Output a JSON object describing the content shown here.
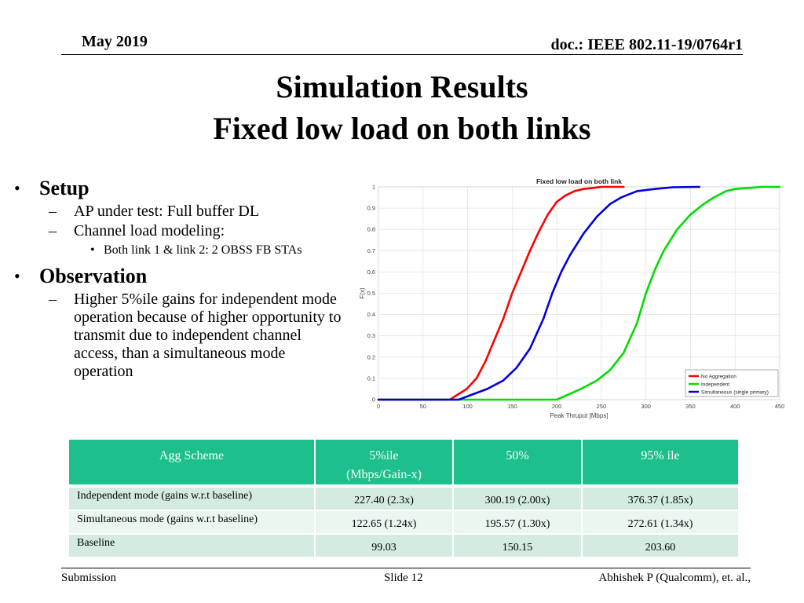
{
  "header": {
    "date": "May 2019",
    "doc_id": "doc.: IEEE 802.11-19/0764r1"
  },
  "title": {
    "line1": "Simulation Results",
    "line2": "Fixed low load on both links"
  },
  "bullets": {
    "setup": {
      "heading": "Setup",
      "items": [
        "AP under test: Full buffer DL",
        "Channel load modeling:"
      ],
      "subitems": [
        "Both link 1 & link 2: 2 OBSS FB STAs"
      ]
    },
    "observation": {
      "heading": "Observation",
      "items": [
        "Higher 5%ile gains for independent mode operation because of higher opportunity to transmit due to independent channel access, than a simultaneous mode operation"
      ]
    }
  },
  "chart_data": {
    "type": "line",
    "title": "Fixed low load on both link",
    "xlabel": "Peak Thruput [Mbps]",
    "ylabel": "F(x)",
    "xlim": [
      0,
      450
    ],
    "ylim": [
      0,
      1
    ],
    "xticks": [
      "0",
      "50",
      "100",
      "150",
      "200",
      "250",
      "300",
      "350",
      "400",
      "450"
    ],
    "yticks": [
      "0",
      "0.1",
      "0.2",
      "0.3",
      "0.4",
      "0.5",
      "0.6",
      "0.7",
      "0.8",
      "0.9",
      "1"
    ],
    "grid": true,
    "legend_position": "bottom-right",
    "series": [
      {
        "name": "No Aggregation",
        "color": "#ff0000",
        "x": [
          0,
          80,
          99,
          110,
          120,
          130,
          140,
          150,
          160,
          170,
          180,
          190,
          200,
          210,
          220,
          230,
          240,
          250,
          260,
          275
        ],
        "y": [
          0,
          0,
          0.05,
          0.1,
          0.18,
          0.28,
          0.38,
          0.5,
          0.6,
          0.7,
          0.79,
          0.87,
          0.93,
          0.96,
          0.98,
          0.99,
          0.995,
          1,
          1,
          1
        ]
      },
      {
        "name": "Independent",
        "color": "#00dd00",
        "x": [
          0,
          200,
          227,
          245,
          260,
          275,
          290,
          300,
          310,
          320,
          335,
          350,
          365,
          376,
          390,
          400,
          415,
          430,
          450
        ],
        "y": [
          0,
          0,
          0.05,
          0.09,
          0.14,
          0.22,
          0.36,
          0.5,
          0.61,
          0.7,
          0.8,
          0.87,
          0.92,
          0.95,
          0.98,
          0.99,
          0.995,
          1,
          1
        ]
      },
      {
        "name": "Simultaneous (single primary)",
        "color": "#0000dd",
        "x": [
          0,
          90,
          122,
          140,
          155,
          170,
          185,
          195,
          205,
          215,
          230,
          245,
          260,
          272,
          290,
          310,
          330,
          360
        ],
        "y": [
          0,
          0,
          0.05,
          0.09,
          0.15,
          0.24,
          0.38,
          0.5,
          0.6,
          0.68,
          0.78,
          0.86,
          0.92,
          0.95,
          0.98,
          0.99,
          0.998,
          1
        ]
      }
    ]
  },
  "table": {
    "headers": [
      "Agg Scheme",
      "5%ile (Mbps/Gain-x)",
      "50%",
      "95% ile"
    ],
    "header_line2": "(Mbps/Gain-x)",
    "header_5ile_line1": "5%ile",
    "rows": [
      [
        "Independent mode (gains w.r.t baseline)",
        "227.40 (2.3x)",
        "300.19 (2.00x)",
        "376.37 (1.85x)"
      ],
      [
        "Simultaneous mode (gains w.r.t baseline)",
        "122.65 (1.24x)",
        "195.57 (1.30x)",
        "272.61 (1.34x)"
      ],
      [
        "Baseline",
        "99.03",
        "150.15",
        "203.60"
      ]
    ]
  },
  "footer": {
    "left": "Submission",
    "center": "Slide 12",
    "right": "Abhishek P (Qualcomm), et. al.,"
  }
}
